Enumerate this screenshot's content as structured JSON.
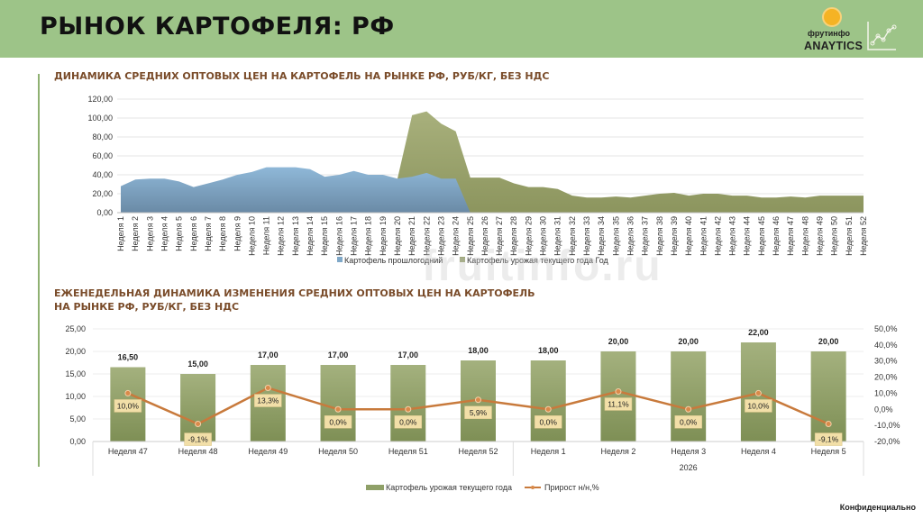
{
  "header": {
    "title": "РЫНОК КАРТОФЕЛЯ: РФ",
    "logo_brand": "фрутинфо",
    "logo_product": "ANAYTICS"
  },
  "watermark": "fruitinfo.ru",
  "footer": {
    "confidential": "Конфиденциально"
  },
  "colors": {
    "header_bg": "#9dc488",
    "title_brown": "#7a4c2a",
    "last_year_blue": "#7fa8c8",
    "current_year_green": "#96a06a",
    "bar_green": "#8fa068",
    "line_orange": "#c87a3c",
    "label_box": "#f2dfa8"
  },
  "chart_data": [
    {
      "type": "area",
      "title": "ДИНАМИКА СРЕДНИХ ОПТОВЫХ ЦЕН НА КАРТОФЕЛЬ НА РЫНКЕ РФ, РУБ/КГ, БЕЗ НДС",
      "xlabel": "",
      "ylabel": "",
      "ylim": [
        0,
        120
      ],
      "yticks": [
        "0,00",
        "20,00",
        "40,00",
        "60,00",
        "80,00",
        "100,00",
        "120,00"
      ],
      "ytick_values": [
        0,
        20,
        40,
        60,
        80,
        100,
        120
      ],
      "grid": true,
      "legend_position": "bottom",
      "categories": [
        "Неделя 1",
        "Неделя 2",
        "Неделя 3",
        "Неделя 4",
        "Неделя 5",
        "Неделя 6",
        "Неделя 7",
        "Неделя 8",
        "Неделя 9",
        "Неделя 10",
        "Неделя 11",
        "Неделя 12",
        "Неделя 13",
        "Неделя 14",
        "Неделя 15",
        "Неделя 16",
        "Неделя 17",
        "Неделя 18",
        "Неделя 19",
        "Неделя 20",
        "Неделя 21",
        "Неделя 22",
        "Неделя 23",
        "Неделя 24",
        "Неделя 25",
        "Неделя 26",
        "Неделя 27",
        "Неделя 28",
        "Неделя 29",
        "Неделя 30",
        "Неделя 31",
        "Неделя 32",
        "Неделя 33",
        "Неделя 34",
        "Неделя 35",
        "Неделя 36",
        "Неделя 37",
        "Неделя 38",
        "Неделя 39",
        "Неделя 40",
        "Неделя 41",
        "Неделя 42",
        "Неделя 43",
        "Неделя 44",
        "Неделя 45",
        "Неделя 46",
        "Неделя 47",
        "Неделя 48",
        "Неделя 49",
        "Неделя 50",
        "Неделя 51",
        "Неделя 52"
      ],
      "series": [
        {
          "name": "Картофель урожая текущего года Год",
          "color": "#96a06a",
          "values": [
            null,
            null,
            null,
            null,
            null,
            null,
            null,
            null,
            null,
            null,
            null,
            null,
            null,
            null,
            null,
            null,
            null,
            null,
            null,
            36,
            103,
            107,
            94,
            86,
            37,
            37,
            37,
            31,
            27,
            27,
            25,
            18,
            16,
            16,
            17,
            16,
            18,
            20,
            21,
            18,
            20,
            20,
            18,
            18,
            16,
            16,
            17,
            16,
            18,
            18,
            18,
            18
          ]
        },
        {
          "name": "Картофель прошлогодний",
          "color": "#7fa8c8",
          "values": [
            28,
            35,
            36,
            36,
            33,
            27,
            31,
            35,
            40,
            43,
            48,
            48,
            48,
            46,
            38,
            40,
            44,
            40,
            40,
            36,
            38,
            42,
            36,
            36,
            0,
            null,
            null,
            null,
            null,
            null,
            null,
            null,
            null,
            null,
            null,
            null,
            null,
            null,
            null,
            null,
            null,
            null,
            null,
            null,
            null,
            null,
            null,
            null,
            null,
            null,
            null,
            null
          ]
        }
      ]
    },
    {
      "type": "bar",
      "title": "ЕЖЕНЕДЕЛЬНАЯ ДИНАМИКА ИЗМЕНЕНИЯ СРЕДНИХ ОПТОВЫХ ЦЕН НА КАРТОФЕЛЬ НА РЫНКЕ РФ, РУБ/КГ, БЕЗ НДС",
      "title_line1": "ЕЖЕНЕДЕЛЬНАЯ ДИНАМИКА ИЗМЕНЕНИЯ СРЕДНИХ ОПТОВЫХ ЦЕН НА КАРТОФЕЛЬ",
      "title_line2": "НА РЫНКЕ РФ, РУБ/КГ, БЕЗ НДС",
      "categories": [
        "Неделя 47",
        "Неделя 48",
        "Неделя 49",
        "Неделя 50",
        "Неделя 51",
        "Неделя 52",
        "Неделя 1",
        "Неделя 2",
        "Неделя 3",
        "Неделя 4",
        "Неделя 5"
      ],
      "group_label": "2026",
      "ylim": [
        0,
        25
      ],
      "yticks": [
        "0,00",
        "5,00",
        "10,00",
        "15,00",
        "20,00",
        "25,00"
      ],
      "ytick_values": [
        0,
        5,
        10,
        15,
        20,
        25
      ],
      "y2lim": [
        -20,
        50
      ],
      "y2ticks": [
        "-20,0%",
        "-10,0%",
        "0,0%",
        "10,0%",
        "20,0%",
        "30,0%",
        "40,0%",
        "50,0%"
      ],
      "y2tick_values": [
        -20,
        -10,
        0,
        10,
        20,
        30,
        40,
        50
      ],
      "grid": true,
      "legend_position": "bottom",
      "series": [
        {
          "name": "Картофель урожая текущего года",
          "kind": "bar",
          "color": "#8fa068",
          "values": [
            16.5,
            15,
            17,
            17,
            17,
            18,
            18,
            20,
            20,
            22,
            20
          ],
          "labels": [
            "16,50",
            "15,00",
            "17,00",
            "17,00",
            "17,00",
            "18,00",
            "18,00",
            "20,00",
            "20,00",
            "22,00",
            "20,00"
          ]
        },
        {
          "name": "Прирост н/н,%",
          "kind": "line",
          "axis": "secondary",
          "color": "#c87a3c",
          "values": [
            10.0,
            -9.1,
            13.3,
            0.0,
            0.0,
            5.9,
            0.0,
            11.1,
            0.0,
            10.0,
            -9.1
          ],
          "labels": [
            "10,0%",
            "-9,1%",
            "13,3%",
            "0,0%",
            "0,0%",
            "5,9%",
            "0,0%",
            "11,1%",
            "0,0%",
            "10,0%",
            "-9,1%"
          ]
        }
      ]
    }
  ]
}
